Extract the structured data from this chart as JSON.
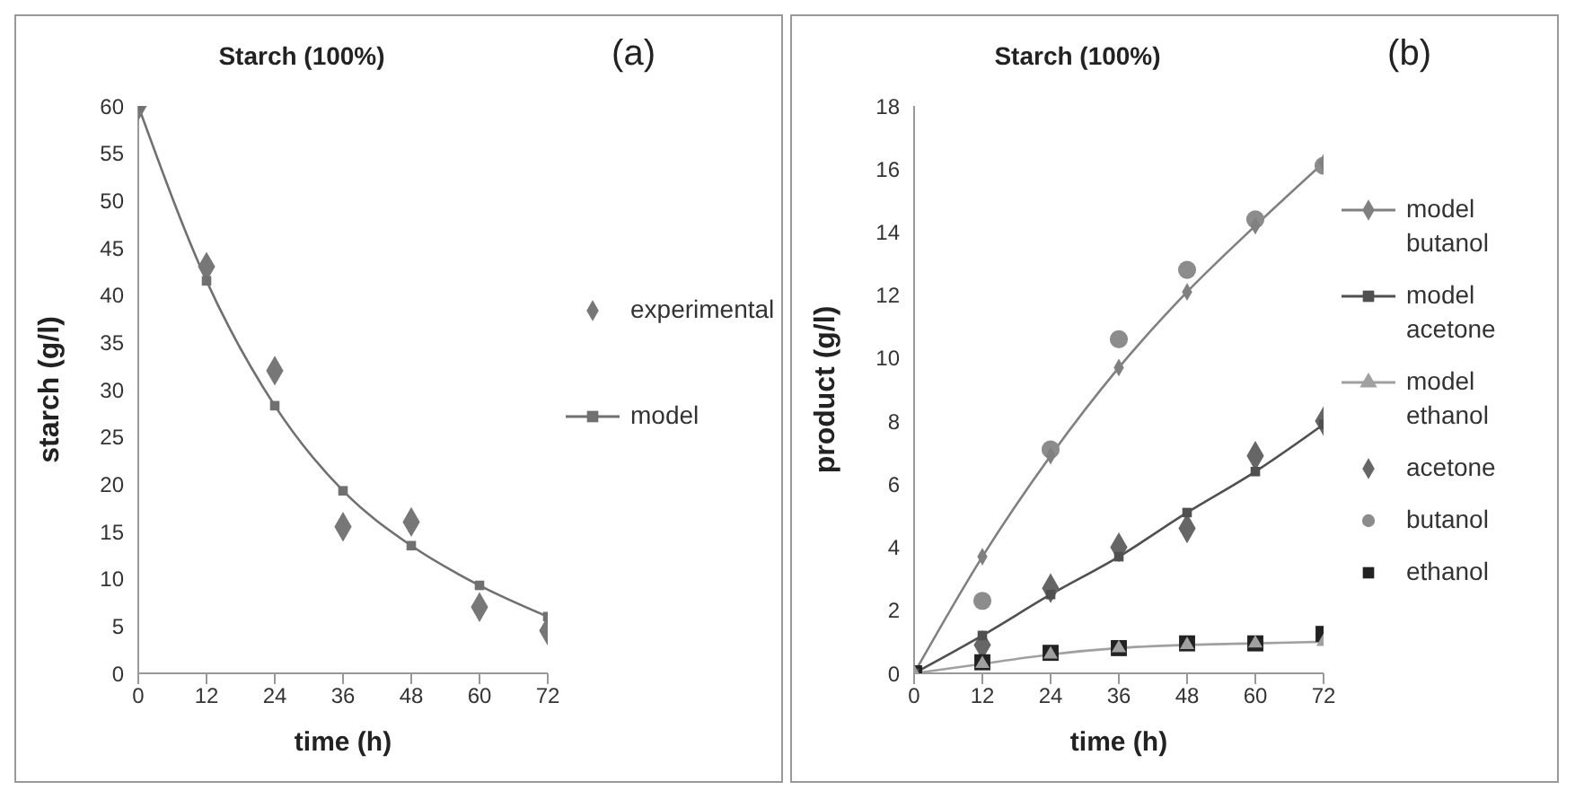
{
  "chart_data": [
    {
      "type": "line",
      "title": "Starch (100%)",
      "annotations": [
        "(a)"
      ],
      "xlabel": "time (h)",
      "ylabel": "starch (g/l)",
      "x": [
        0,
        12,
        24,
        36,
        48,
        60,
        72
      ],
      "xlim": [
        0,
        72
      ],
      "xticks": [
        0,
        12,
        24,
        36,
        48,
        60,
        72
      ],
      "ylim": [
        0,
        60
      ],
      "yticks": [
        0,
        5,
        10,
        15,
        20,
        25,
        30,
        35,
        40,
        45,
        50,
        55,
        60
      ],
      "grid": false,
      "legend": "right",
      "series": [
        {
          "name": "experimental",
          "type": "scatter",
          "marker": "diamond",
          "color": "#777777",
          "values": [
            60,
            43,
            32,
            15.5,
            16,
            7,
            4.5
          ]
        },
        {
          "name": "model",
          "type": "line",
          "marker": "square",
          "line_style": "solid",
          "color": "#707070",
          "values": [
            60,
            41.5,
            28.3,
            19.3,
            13.5,
            9.3,
            6
          ]
        }
      ]
    },
    {
      "type": "line",
      "title": "Starch (100%)",
      "annotations": [
        "(b)"
      ],
      "xlabel": "time (h)",
      "ylabel": "product (g/l)",
      "x": [
        0,
        12,
        24,
        36,
        48,
        60,
        72
      ],
      "xlim": [
        0,
        72
      ],
      "xticks": [
        0,
        12,
        24,
        36,
        48,
        60,
        72
      ],
      "ylim": [
        0,
        18
      ],
      "yticks": [
        0,
        2,
        4,
        6,
        8,
        10,
        12,
        14,
        16,
        18
      ],
      "grid": false,
      "legend": "right",
      "series": [
        {
          "name": "model butanol",
          "type": "line",
          "marker": "diamond",
          "line_style": "solid",
          "color": "#808080",
          "values": [
            0,
            3.7,
            6.9,
            9.7,
            12.1,
            14.2,
            16.2
          ]
        },
        {
          "name": "model acetone",
          "type": "line",
          "marker": "square",
          "line_style": "solid",
          "color": "#505050",
          "values": [
            0,
            1.2,
            2.5,
            3.7,
            5.1,
            6.4,
            7.9
          ]
        },
        {
          "name": "model ethanol",
          "type": "line",
          "marker": "triangle",
          "line_style": "solid",
          "color": "#a0a0a0",
          "values": [
            0,
            0.3,
            0.6,
            0.8,
            0.9,
            0.95,
            1.0
          ]
        },
        {
          "name": "acetone",
          "type": "scatter",
          "marker": "diamond",
          "color": "#666666",
          "values": [
            null,
            0.9,
            2.7,
            4.0,
            4.6,
            6.9,
            8.0
          ]
        },
        {
          "name": "butanol",
          "type": "scatter",
          "marker": "circle",
          "color": "#8c8c8c",
          "values": [
            null,
            2.3,
            7.1,
            10.6,
            12.8,
            14.4,
            16.1
          ]
        },
        {
          "name": "ethanol",
          "type": "scatter",
          "marker": "square",
          "color": "#222222",
          "values": [
            0,
            0.35,
            0.65,
            0.8,
            0.95,
            0.95,
            1.25
          ]
        }
      ]
    }
  ]
}
